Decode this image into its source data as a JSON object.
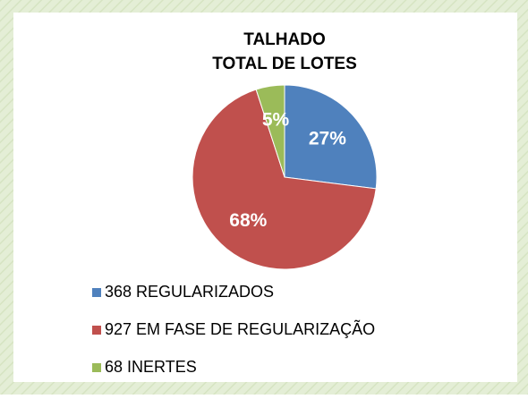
{
  "chart_data": {
    "type": "pie",
    "title": [
      "TALHADO",
      "TOTAL DE LOTES"
    ],
    "categories": [
      "368 REGULARIZADOS",
      "927 EM FASE DE REGULARIZAÇÃO",
      "68 INERTES"
    ],
    "values": [
      27,
      68,
      5
    ],
    "value_labels": [
      "27%",
      "68%",
      "5%"
    ],
    "colors": [
      "#4f81bd",
      "#c0504d",
      "#9bbb59"
    ],
    "legend": "bottom"
  }
}
